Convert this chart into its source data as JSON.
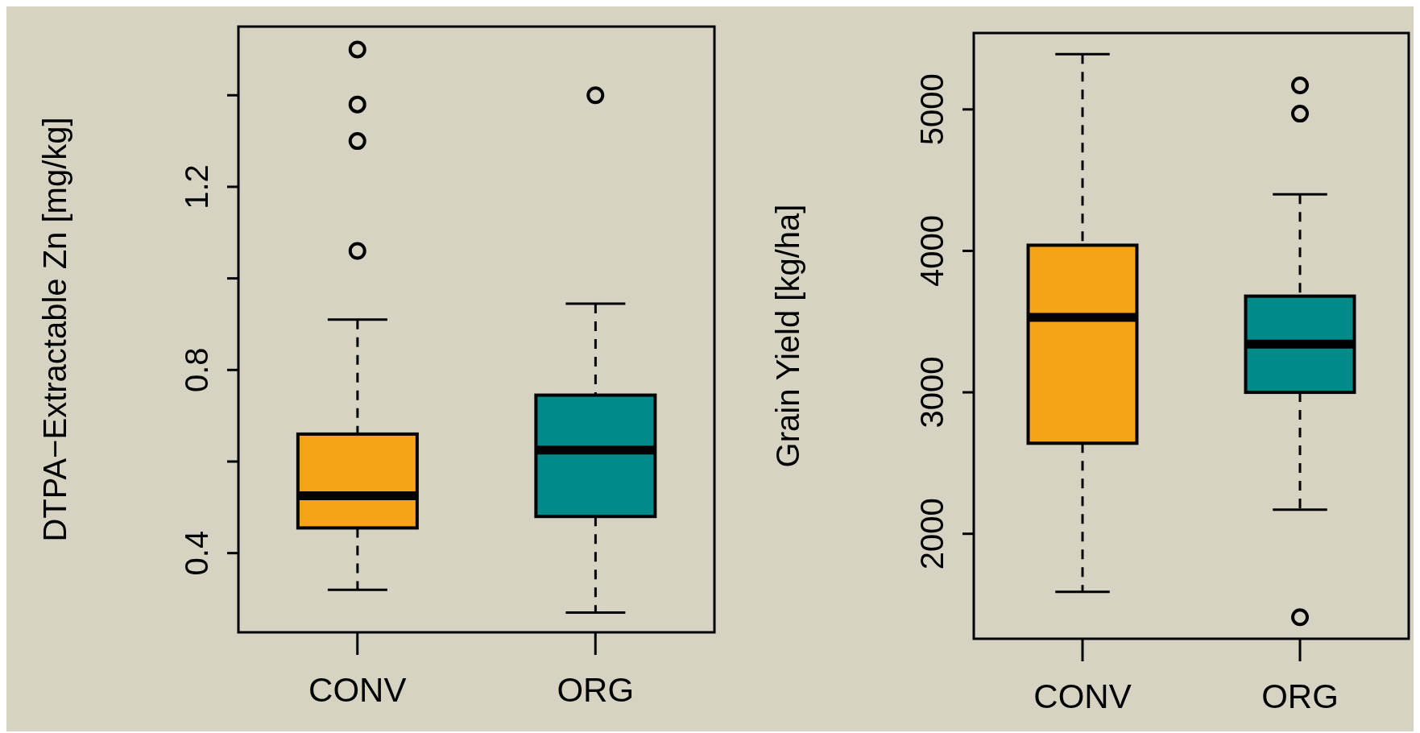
{
  "chart_data": [
    {
      "type": "box",
      "ylabel": "DTPA−Extractable Zn [mg/kg]",
      "categories": [
        "CONV",
        "ORG"
      ],
      "colors": [
        "#f5a418",
        "#008b8a"
      ],
      "boxes": [
        {
          "low": 0.32,
          "q1": 0.455,
          "median": 0.525,
          "q3": 0.66,
          "high": 0.91,
          "outliers": [
            1.06,
            1.3,
            1.38,
            1.5
          ]
        },
        {
          "low": 0.27,
          "q1": 0.48,
          "median": 0.625,
          "q3": 0.745,
          "high": 0.945,
          "outliers": [
            1.4
          ]
        }
      ],
      "ylim": [
        0.227,
        1.55
      ],
      "yticks": [
        0.4,
        {
          "value": 0.6,
          "label": null
        },
        0.8,
        {
          "value": 1.0,
          "label": null
        },
        1.2,
        {
          "value": 1.4,
          "label": null
        }
      ],
      "grid": false,
      "legend": false
    },
    {
      "type": "box",
      "ylabel": "Grain Yield [kg/ha]",
      "categories": [
        "CONV",
        "ORG"
      ],
      "colors": [
        "#f5a418",
        "#008b8a"
      ],
      "boxes": [
        {
          "low": 1590,
          "q1": 2640,
          "median": 3530,
          "q3": 4040,
          "high": 5390
        },
        {
          "low": 2170,
          "q1": 3000,
          "median": 3340,
          "q3": 3680,
          "high": 4400,
          "outliers": [
            5170,
            4970,
            1410
          ]
        }
      ],
      "ylim": [
        1258,
        5540
      ],
      "yticks": [
        2000,
        3000,
        4000,
        5000
      ],
      "grid": false,
      "legend": false
    }
  ]
}
